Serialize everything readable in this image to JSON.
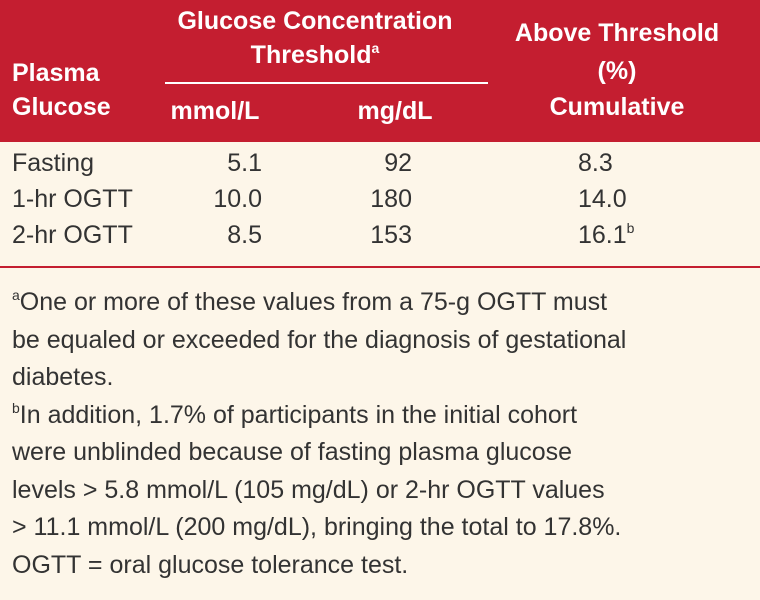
{
  "table": {
    "header": {
      "row_label": [
        "Plasma",
        "Glucose"
      ],
      "group": {
        "title": [
          "Glucose Concentration",
          "Threshold"
        ],
        "marker": "a",
        "units": [
          "mmol/L",
          "mg/dL"
        ]
      },
      "last": [
        "Above Threshold",
        "(%)",
        "Cumulative"
      ]
    },
    "rows": [
      {
        "label": "Fasting",
        "mmol": "5.1",
        "mgdl": "92",
        "pct": "8.3"
      },
      {
        "label": "1-hr OGTT",
        "mmol": "10.0",
        "mgdl": "180",
        "pct": "14.0"
      },
      {
        "label": "2-hr OGTT",
        "mmol": "8.5",
        "mgdl": "153",
        "pct": "16.1",
        "marker": "b"
      }
    ],
    "footnotes": [
      {
        "marker": "a",
        "lines": [
          "One or more of these values from a 75-g OGTT must",
          "be equaled or exceeded for the diagnosis of gestational",
          "diabetes."
        ]
      },
      {
        "marker": "b",
        "lines": [
          "In addition, 1.7% of participants in the initial cohort",
          "were unblinded because of fasting plasma glucose",
          "levels > 5.8 mmol/L (105 mg/dL) or 2-hr OGTT values",
          "> 11.1 mmol/L (200 mg/dL), bringing the total to 17.8%."
        ]
      },
      {
        "lines": [
          "OGTT = oral glucose tolerance test."
        ]
      }
    ]
  }
}
